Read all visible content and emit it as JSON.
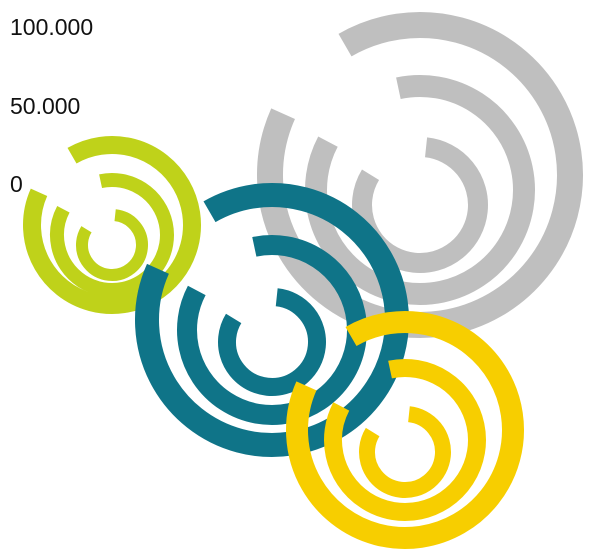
{
  "labels": {
    "top": "100.000",
    "middle": "50.000",
    "bottom": "0"
  },
  "spirals": [
    {
      "name": "gray-spiral",
      "color": "#BFBFBF"
    },
    {
      "name": "green-spiral",
      "color": "#BFD21A"
    },
    {
      "name": "teal-spiral",
      "color": "#0F7488"
    },
    {
      "name": "yellow-spiral",
      "color": "#F7CE00"
    }
  ]
}
